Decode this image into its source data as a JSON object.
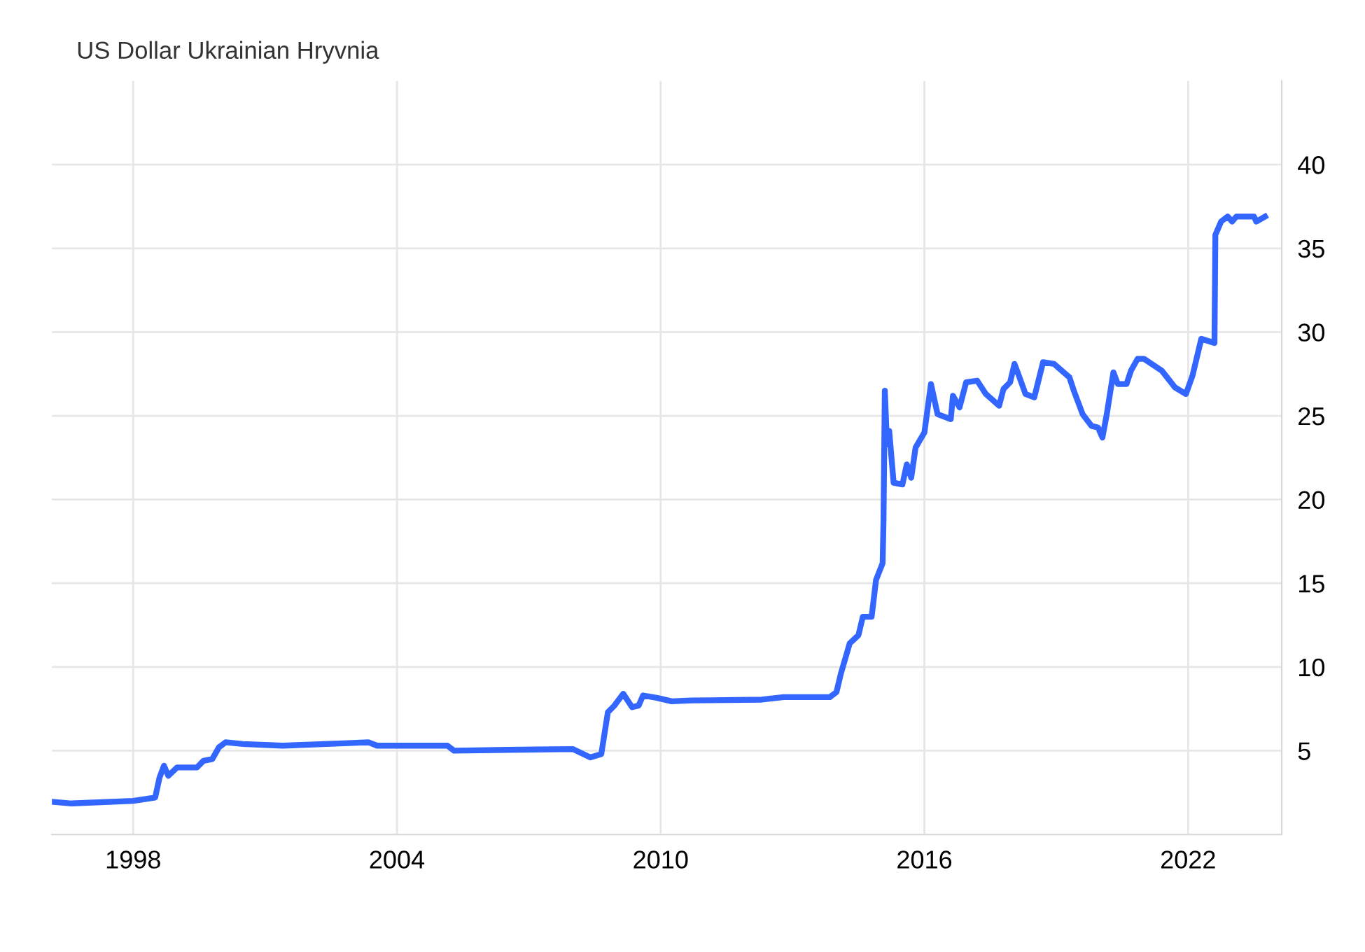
{
  "chart_data": {
    "type": "line",
    "title": "US Dollar Ukrainian Hryvnia",
    "xlim": [
      1996.15,
      2024.13
    ],
    "xticks": [
      1998,
      2004,
      2010,
      2016,
      2022
    ],
    "ylim": [
      0,
      45
    ],
    "yticks": [
      5,
      10,
      15,
      20,
      25,
      30,
      35,
      40
    ],
    "grid": true,
    "legend": false,
    "marker": "none",
    "line_style": "solid",
    "series": [
      {
        "color": "#3366ff",
        "x": [
          1996.15,
          1996.6,
          1998.0,
          1998.5,
          1998.6,
          1998.7,
          1998.8,
          1999.0,
          1999.45,
          1999.6,
          1999.8,
          1999.95,
          2000.1,
          2000.5,
          2001.4,
          2003.35,
          2003.55,
          2005.15,
          2005.3,
          2006.5,
          2008.0,
          2008.4,
          2008.65,
          2008.8,
          2008.95,
          2009.15,
          2009.35,
          2009.5,
          2009.6,
          2009.93,
          2010.25,
          2010.7,
          2012.3,
          2012.8,
          2013.85,
          2014.0,
          2014.1,
          2014.3,
          2014.5,
          2014.6,
          2014.8,
          2014.9,
          2015.05,
          2015.07,
          2015.1,
          2015.15,
          2015.2,
          2015.3,
          2015.5,
          2015.6,
          2015.7,
          2015.8,
          2016.0,
          2016.15,
          2016.3,
          2016.6,
          2016.65,
          2016.8,
          2016.95,
          2017.2,
          2017.4,
          2017.7,
          2017.8,
          2017.95,
          2018.05,
          2018.15,
          2018.3,
          2018.5,
          2018.7,
          2018.95,
          2019.3,
          2019.4,
          2019.6,
          2019.8,
          2019.95,
          2020.05,
          2020.15,
          2020.3,
          2020.4,
          2020.6,
          2020.7,
          2020.85,
          2021.0,
          2021.4,
          2021.7,
          2021.95,
          2022.1,
          2022.3,
          2022.6,
          2022.62,
          2022.75,
          2022.9,
          2023.0,
          2023.1,
          2023.5,
          2023.55,
          2023.75
        ],
        "values": [
          1.95,
          1.85,
          2.0,
          2.2,
          3.4,
          4.1,
          3.5,
          4.0,
          4.0,
          4.4,
          4.5,
          5.2,
          5.5,
          5.4,
          5.3,
          5.5,
          5.3,
          5.3,
          5.0,
          5.05,
          5.1,
          4.6,
          4.8,
          7.3,
          7.7,
          8.4,
          7.6,
          7.7,
          8.3,
          8.15,
          7.95,
          8.0,
          8.05,
          8.2,
          8.2,
          8.5,
          9.6,
          11.4,
          11.9,
          13.0,
          13.0,
          15.2,
          16.2,
          18.7,
          26.5,
          23.3,
          24.1,
          21.0,
          20.9,
          22.1,
          21.3,
          23.1,
          24.0,
          26.9,
          25.1,
          24.8,
          26.2,
          25.5,
          27.0,
          27.1,
          26.3,
          25.6,
          26.6,
          27.0,
          28.1,
          27.4,
          26.3,
          26.1,
          28.2,
          28.1,
          27.3,
          26.5,
          25.1,
          24.4,
          24.3,
          23.7,
          25.1,
          27.6,
          26.9,
          26.9,
          27.7,
          28.4,
          28.4,
          27.7,
          26.7,
          26.3,
          27.4,
          29.6,
          29.35,
          35.8,
          36.6,
          36.9,
          36.6,
          36.9,
          36.9,
          36.6,
          36.9
        ]
      }
    ]
  }
}
